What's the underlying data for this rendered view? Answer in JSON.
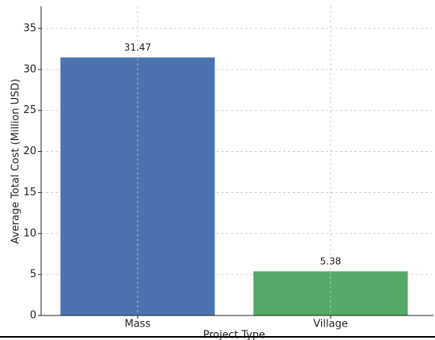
{
  "chart_data": {
    "type": "bar",
    "x_label": "Project Type",
    "y_label": "Average Total Cost (Million USD)",
    "categories": [
      "Mass",
      "Village"
    ],
    "values": [
      31.47,
      5.38
    ],
    "colors": [
      "#4c72b0",
      "#55a868"
    ],
    "ylim": [
      0,
      37.7
    ],
    "yticks": [
      0,
      5,
      10,
      15,
      20,
      25,
      30,
      35
    ],
    "grid": true
  }
}
